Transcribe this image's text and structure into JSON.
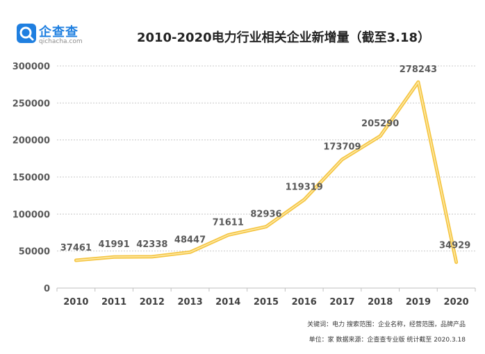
{
  "brand": {
    "name": "企查查",
    "url": "qichacha.com",
    "color": "#1f7fe0"
  },
  "chart_data": {
    "type": "line",
    "title": "2010-2020电力行业相关企业新增量（截至3.18）",
    "categories": [
      "2010",
      "2011",
      "2012",
      "2013",
      "2014",
      "2015",
      "2016",
      "2017",
      "2018",
      "2019",
      "2020"
    ],
    "series": [
      {
        "values": [
          37461,
          41991,
          42338,
          48447,
          71611,
          82936,
          119319,
          173709,
          205290,
          278243,
          34929
        ]
      }
    ],
    "value_labels": [
      "37461",
      "41991",
      "42338",
      "48447",
      "71611",
      "82936",
      "119319",
      "173709",
      "205290",
      "278243",
      "34929"
    ],
    "ylim": [
      0,
      300000
    ],
    "yticks": [
      "0",
      "50000",
      "100000",
      "150000",
      "200000",
      "250000",
      "300000"
    ],
    "grid": true,
    "line_color": "#f5c542",
    "line_inner_color": "#fde9a6"
  },
  "footnotes": {
    "keywords": "关键词：电力  搜索范围：企业名称，经营范围，品牌产品",
    "source": "单位：家  数据来源：企查查专业版  统计截至 2020.3.18"
  }
}
